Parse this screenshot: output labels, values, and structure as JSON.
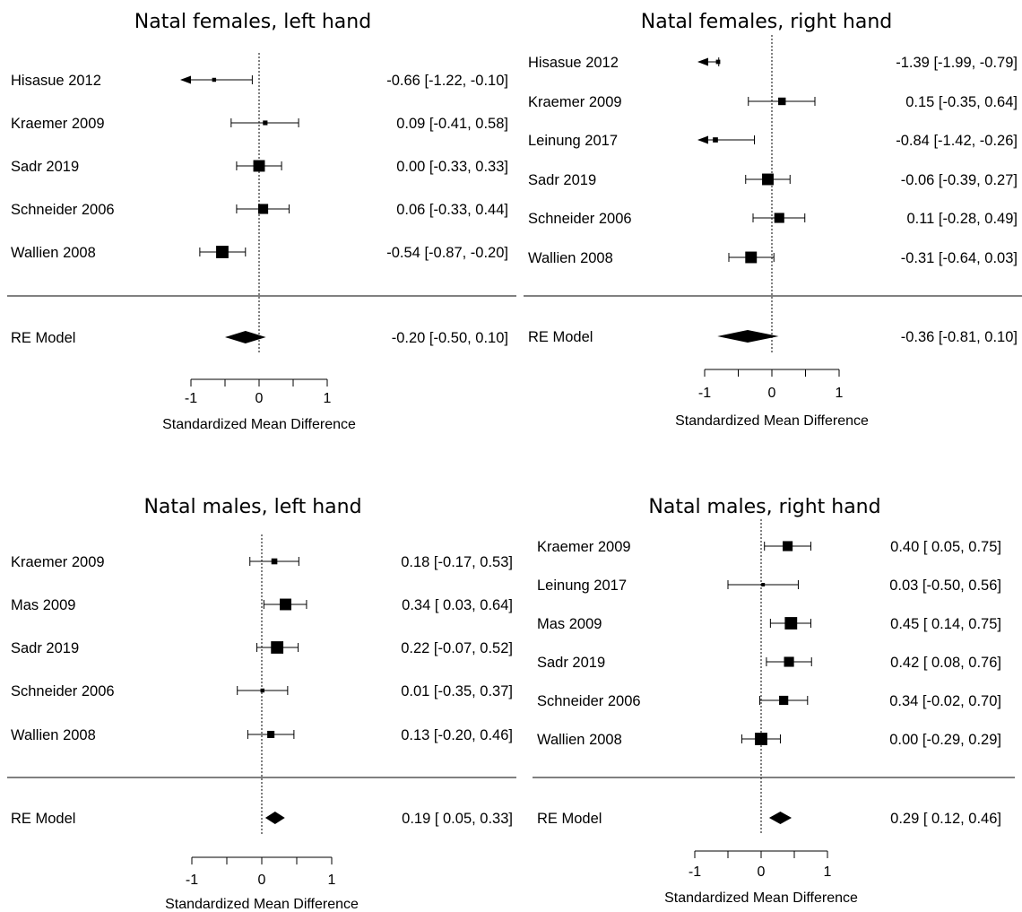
{
  "colors": {
    "ink": "#000000",
    "background": "#ffffff"
  },
  "chart_data": [
    {
      "type": "forest",
      "title": "Natal females, left hand",
      "xlabel": "Standardized Mean Difference",
      "xlim": [
        -1,
        1
      ],
      "ticks": [
        "-1",
        "0",
        "1"
      ],
      "studies": [
        {
          "label": "Hisasue 2012",
          "estimate": -0.66,
          "ci_low": -1.22,
          "ci_high": -0.1,
          "ci_text": "-0.66 [-1.22, -0.10]",
          "weight": 0.08,
          "truncated_left": true
        },
        {
          "label": "Kraemer 2009",
          "estimate": 0.09,
          "ci_low": -0.41,
          "ci_high": 0.58,
          "ci_text": "0.09 [-0.41,  0.58]",
          "weight": 0.12
        },
        {
          "label": "Sadr 2019",
          "estimate": 0.0,
          "ci_low": -0.33,
          "ci_high": 0.33,
          "ci_text": "0.00 [-0.33,  0.33]",
          "weight": 0.55
        },
        {
          "label": "Schneider 2006",
          "estimate": 0.06,
          "ci_low": -0.33,
          "ci_high": 0.44,
          "ci_text": "0.06 [-0.33,  0.44]",
          "weight": 0.45
        },
        {
          "label": "Wallien 2008",
          "estimate": -0.54,
          "ci_low": -0.87,
          "ci_high": -0.2,
          "ci_text": "-0.54 [-0.87, -0.20]",
          "weight": 0.6
        }
      ],
      "summary": {
        "label": "RE Model",
        "estimate": -0.2,
        "ci_low": -0.5,
        "ci_high": 0.1,
        "ci_text": "-0.20 [-0.50,  0.10]"
      }
    },
    {
      "type": "forest",
      "title": "Natal females, right hand",
      "xlabel": "Standardized Mean Difference",
      "xlim": [
        -1,
        1
      ],
      "ticks": [
        "-1",
        "0",
        "1"
      ],
      "studies": [
        {
          "label": "Hisasue 2012",
          "estimate": -1.39,
          "ci_low": -1.99,
          "ci_high": -0.79,
          "ci_text": "-1.39 [-1.99, -0.79]",
          "weight": 0.1,
          "truncated_left": true
        },
        {
          "label": "Kraemer 2009",
          "estimate": 0.15,
          "ci_low": -0.35,
          "ci_high": 0.64,
          "ci_text": "0.15 [-0.35,  0.64]",
          "weight": 0.3
        },
        {
          "label": "Leinung 2017",
          "estimate": -0.84,
          "ci_low": -1.42,
          "ci_high": -0.26,
          "ci_text": "-0.84 [-1.42, -0.26]",
          "weight": 0.15,
          "truncated_left": true
        },
        {
          "label": "Sadr 2019",
          "estimate": -0.06,
          "ci_low": -0.39,
          "ci_high": 0.27,
          "ci_text": "-0.06 [-0.39,  0.27]",
          "weight": 0.55
        },
        {
          "label": "Schneider 2006",
          "estimate": 0.11,
          "ci_low": -0.28,
          "ci_high": 0.49,
          "ci_text": "0.11 [-0.28,  0.49]",
          "weight": 0.45
        },
        {
          "label": "Wallien 2008",
          "estimate": -0.31,
          "ci_low": -0.64,
          "ci_high": 0.03,
          "ci_text": "-0.31 [-0.64,  0.03]",
          "weight": 0.55
        }
      ],
      "summary": {
        "label": "RE Model",
        "estimate": -0.36,
        "ci_low": -0.81,
        "ci_high": 0.1,
        "ci_text": "-0.36 [-0.81,  0.10]"
      }
    },
    {
      "type": "forest",
      "title": "Natal males, left hand",
      "xlabel": "Standardized Mean Difference",
      "xlim": [
        -1,
        1
      ],
      "ticks": [
        "-1",
        "0",
        "1"
      ],
      "studies": [
        {
          "label": "Kraemer 2009",
          "estimate": 0.18,
          "ci_low": -0.17,
          "ci_high": 0.53,
          "ci_text": "0.18 [-0.17,  0.53]",
          "weight": 0.2
        },
        {
          "label": "Mas 2009",
          "estimate": 0.34,
          "ci_low": 0.03,
          "ci_high": 0.64,
          "ci_text": "0.34 [ 0.03,  0.64]",
          "weight": 0.55
        },
        {
          "label": "Sadr 2019",
          "estimate": 0.22,
          "ci_low": -0.07,
          "ci_high": 0.52,
          "ci_text": "0.22 [-0.07,  0.52]",
          "weight": 0.6
        },
        {
          "label": "Schneider 2006",
          "estimate": 0.01,
          "ci_low": -0.35,
          "ci_high": 0.37,
          "ci_text": "0.01 [-0.35,  0.37]",
          "weight": 0.08
        },
        {
          "label": "Wallien 2008",
          "estimate": 0.13,
          "ci_low": -0.2,
          "ci_high": 0.46,
          "ci_text": "0.13 [-0.20,  0.46]",
          "weight": 0.28
        }
      ],
      "summary": {
        "label": "RE Model",
        "estimate": 0.19,
        "ci_low": 0.05,
        "ci_high": 0.33,
        "ci_text": "0.19 [ 0.05,  0.33]"
      }
    },
    {
      "type": "forest",
      "title": "Natal males, right hand",
      "xlabel": "Standardized Mean Difference",
      "xlim": [
        -1,
        1
      ],
      "ticks": [
        "-1",
        "0",
        "1"
      ],
      "studies": [
        {
          "label": "Kraemer 2009",
          "estimate": 0.4,
          "ci_low": 0.05,
          "ci_high": 0.75,
          "ci_text": "0.40 [ 0.05,  0.75]",
          "weight": 0.45
        },
        {
          "label": "Leinung 2017",
          "estimate": 0.03,
          "ci_low": -0.5,
          "ci_high": 0.56,
          "ci_text": "0.03 [-0.50,  0.56]",
          "weight": 0.05
        },
        {
          "label": "Mas 2009",
          "estimate": 0.45,
          "ci_low": 0.14,
          "ci_high": 0.75,
          "ci_text": "0.45 [ 0.14,  0.75]",
          "weight": 0.6
        },
        {
          "label": "Sadr 2019",
          "estimate": 0.42,
          "ci_low": 0.08,
          "ci_high": 0.76,
          "ci_text": "0.42 [ 0.08,  0.76]",
          "weight": 0.45
        },
        {
          "label": "Schneider 2006",
          "estimate": 0.34,
          "ci_low": -0.02,
          "ci_high": 0.7,
          "ci_text": "0.34 [-0.02,  0.70]",
          "weight": 0.4
        },
        {
          "label": "Wallien 2008",
          "estimate": 0.0,
          "ci_low": -0.29,
          "ci_high": 0.29,
          "ci_text": "0.00 [-0.29,  0.29]",
          "weight": 0.6
        }
      ],
      "summary": {
        "label": "RE Model",
        "estimate": 0.29,
        "ci_low": 0.12,
        "ci_high": 0.46,
        "ci_text": "0.29 [ 0.12,  0.46]"
      }
    }
  ]
}
